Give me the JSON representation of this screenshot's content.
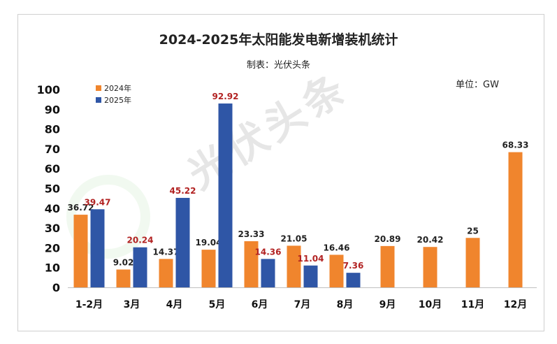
{
  "title": "2024-2025年太阳能发电新增装机统计",
  "source": "制表：光伏头条",
  "unit": "单位：GW",
  "watermark": "光伏头条",
  "colors": {
    "s2024": "#F0852D",
    "s2025": "#2F56A6",
    "label2025": "#B22222",
    "label2024": "#222222"
  },
  "chart_data": {
    "type": "bar",
    "categories": [
      "1-2月",
      "3月",
      "4月",
      "5月",
      "6月",
      "7月",
      "8月",
      "9月",
      "10月",
      "11月",
      "12月"
    ],
    "series": [
      {
        "name": "2024年",
        "values": [
          36.72,
          9.02,
          14.37,
          19.04,
          23.33,
          21.05,
          16.46,
          20.89,
          20.42,
          25,
          68.33
        ]
      },
      {
        "name": "2025年",
        "values": [
          39.47,
          20.24,
          45.22,
          92.92,
          14.36,
          11.04,
          7.36,
          null,
          null,
          null,
          null
        ]
      }
    ],
    "data_labels": [
      [
        "36.72",
        "9.02",
        "14.37",
        "19.04",
        "23.33",
        "21.05",
        "16.46",
        "20.89",
        "20.42",
        "25",
        "68.33"
      ],
      [
        "39.47",
        "20.24",
        "45.22",
        "92.92",
        "14.36",
        "11.04",
        "7.36",
        null,
        null,
        null,
        null
      ]
    ],
    "ylim": [
      0,
      100
    ],
    "yticks": [
      "0",
      "10",
      "20",
      "30",
      "40",
      "50",
      "60",
      "70",
      "80",
      "90",
      "100"
    ],
    "legend_position": "top-left",
    "grid": false
  }
}
